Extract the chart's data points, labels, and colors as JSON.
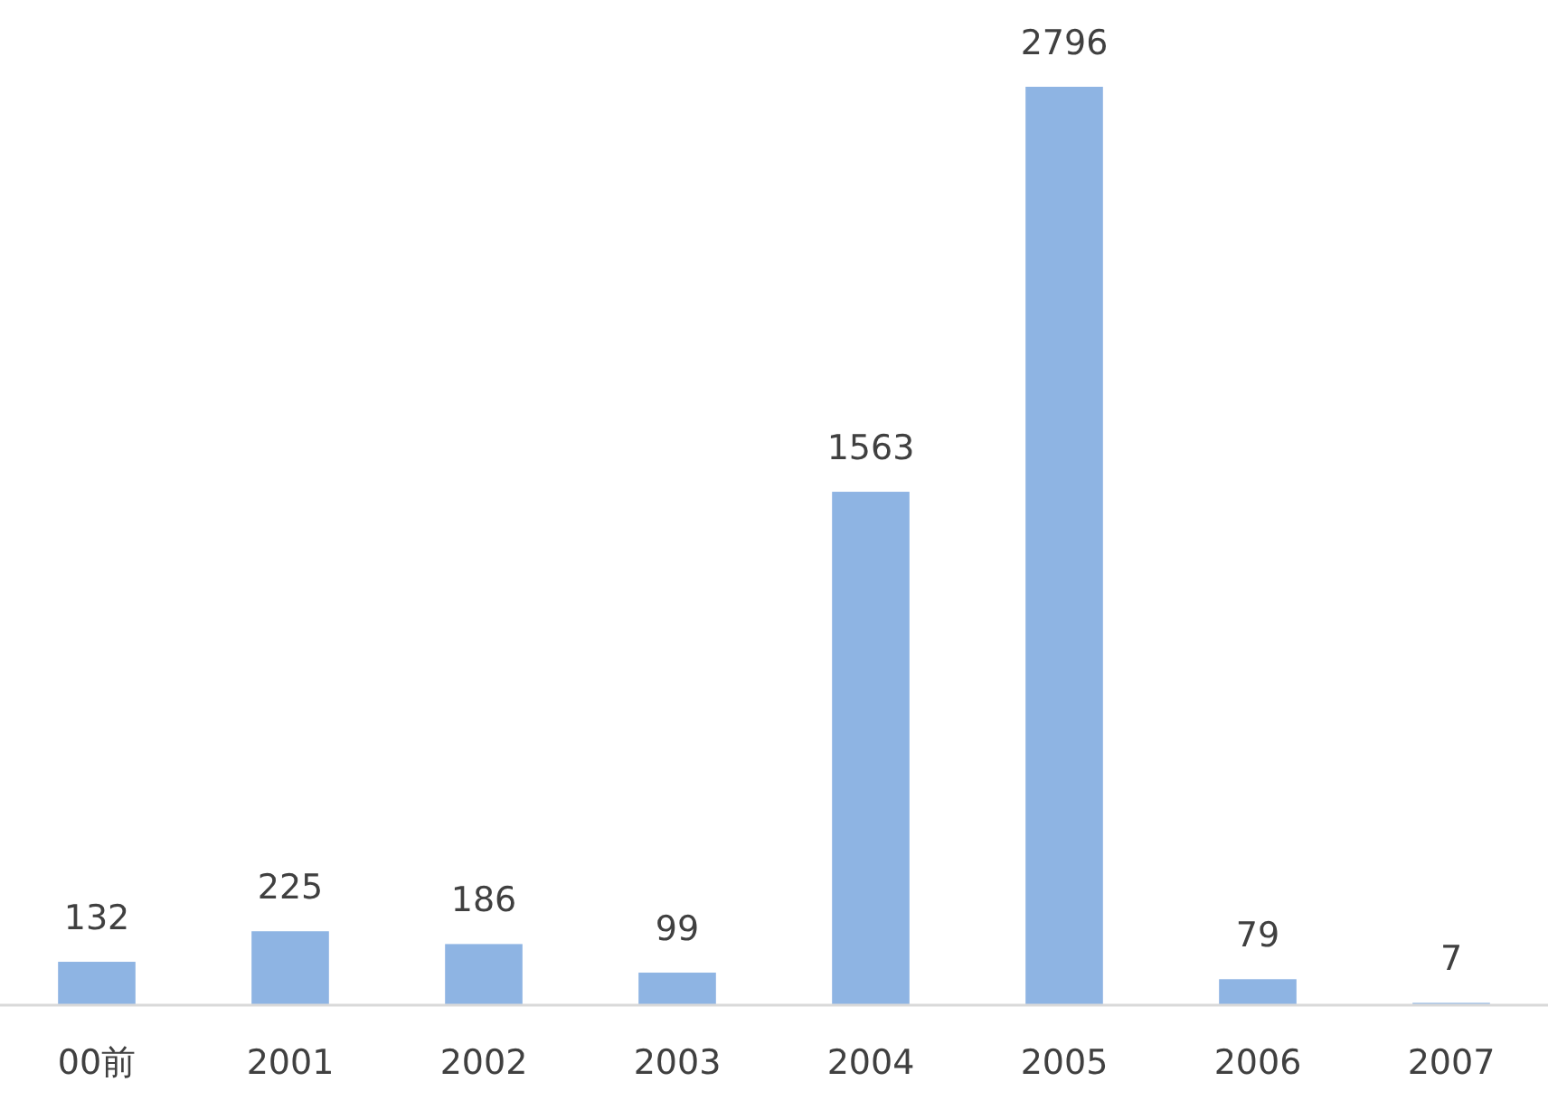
{
  "chart_data": {
    "type": "bar",
    "categories": [
      "00前",
      "2001",
      "2002",
      "2003",
      "2004",
      "2005",
      "2006",
      "2007"
    ],
    "values": [
      132,
      225,
      186,
      99,
      1563,
      2796,
      79,
      7
    ],
    "color": "#8eb4e3",
    "data_labels": true
  }
}
